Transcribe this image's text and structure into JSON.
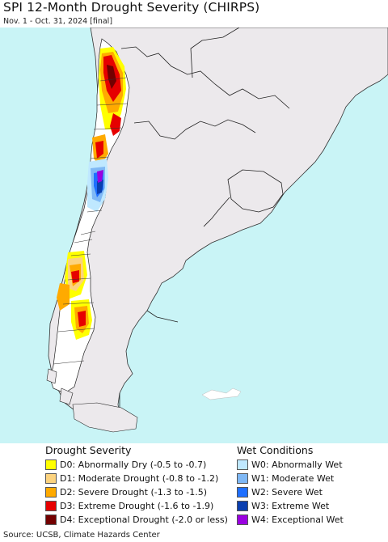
{
  "header": {
    "title": "SPI 12-Month Drought Severity (CHIRPS)",
    "subtitle": "Nov. 1 - Oct. 31, 2024 [final]"
  },
  "map": {
    "ocean_color": "#c9f4f6",
    "land_color": "#ece9ec",
    "border_color": "#222222"
  },
  "legend": {
    "drought": {
      "heading": "Drought Severity",
      "items": [
        {
          "label": "D0: Abnormally Dry (-0.5 to -0.7)",
          "color": "#ffff00"
        },
        {
          "label": "D1: Moderate Drought (-0.8 to -1.2)",
          "color": "#fcd37f"
        },
        {
          "label": "D2: Severe Drought (-1.3 to -1.5)",
          "color": "#ffaa00"
        },
        {
          "label": "D3: Extreme Drought (-1.6 to -1.9)",
          "color": "#e60000"
        },
        {
          "label": "D4: Exceptional Drought (-2.0 or less)",
          "color": "#730000"
        }
      ]
    },
    "wet": {
      "heading": "Wet Conditions",
      "items": [
        {
          "label": "W0: Abnormally Wet",
          "color": "#bfe8ff"
        },
        {
          "label": "W1: Moderate Wet",
          "color": "#7fb8f5"
        },
        {
          "label": "W2: Severe Wet",
          "color": "#1f6fff"
        },
        {
          "label": "W3: Extreme Wet",
          "color": "#0a3fb0"
        },
        {
          "label": "W4: Exceptional Wet",
          "color": "#9a00e0"
        }
      ]
    }
  },
  "footer": {
    "source": "Source: UCSB, Climate Hazards Center"
  }
}
